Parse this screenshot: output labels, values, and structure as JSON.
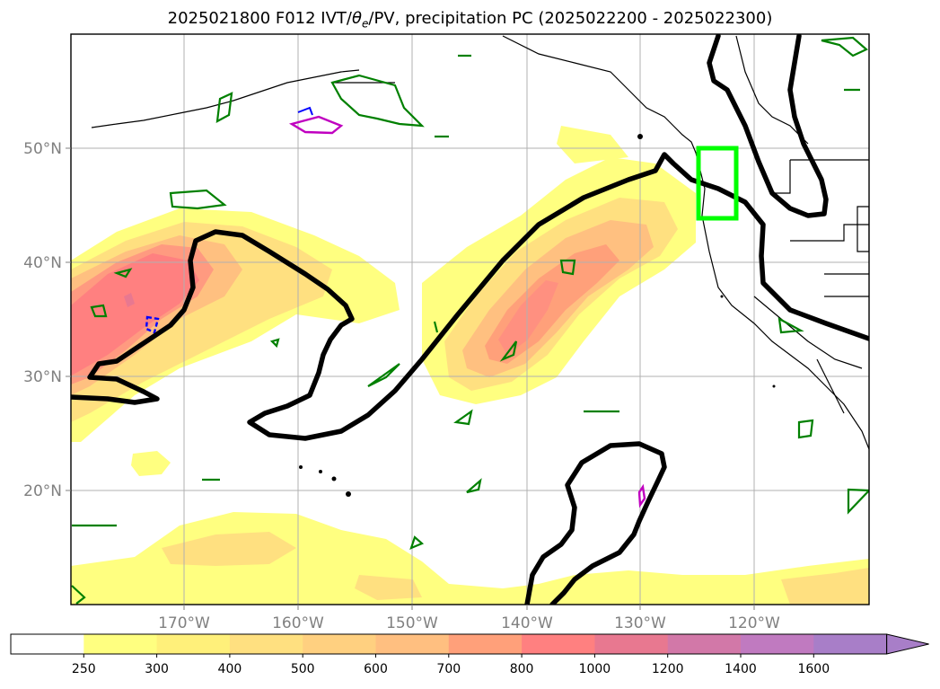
{
  "title_parts": {
    "prefix": "2025021800 F012 IVT/",
    "theta": "θ",
    "sub": "e",
    "suffix": "/PV, precipitation PC (2025022200 - 2025022300)"
  },
  "map": {
    "lon_ticks": [
      "170°W",
      "160°W",
      "150°W",
      "140°W",
      "130°W",
      "120°W"
    ],
    "lat_ticks": [
      "50°N",
      "40°N",
      "30°N",
      "20°N"
    ],
    "highlight_box_color": "#00ff00",
    "contour_color": "#000000",
    "pv_contour_color": "#008000",
    "tick_color": "#808080"
  },
  "colorbar": {
    "levels": [
      "250",
      "300",
      "400",
      "500",
      "600",
      "700",
      "800",
      "1000",
      "1200",
      "1400",
      "1600"
    ],
    "colors": [
      "#ffffff",
      "#ffff80",
      "#fff07a",
      "#ffe080",
      "#ffd080",
      "#ffbf80",
      "#ffa07a",
      "#ff8080",
      "#e87890",
      "#d278a8",
      "#c07ac0",
      "#a87ec8"
    ]
  }
}
